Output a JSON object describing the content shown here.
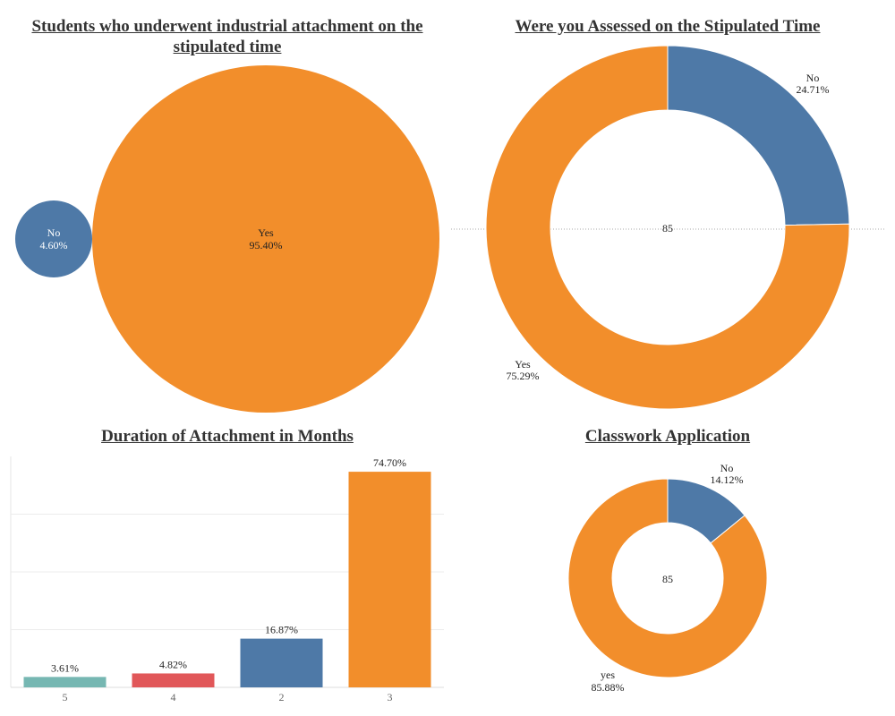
{
  "chart_data": [
    {
      "type": "pie",
      "variant": "packed-bubbles",
      "title_line1": "Students who underwent industrial attachment on the",
      "title_line2": "stipulated time",
      "slices": [
        {
          "label": "No",
          "value_label": "4.60%",
          "value": 4.6,
          "color": "#4e79a7"
        },
        {
          "label": "Yes",
          "value_label": "95.40%",
          "value": 95.4,
          "color": "#f28e2b"
        }
      ]
    },
    {
      "type": "pie",
      "variant": "donut",
      "title": "Were you Assessed on the Stipulated Time",
      "center_label": "85",
      "slices": [
        {
          "label": "No",
          "value_label": "24.71%",
          "value": 24.71,
          "color": "#4e79a7"
        },
        {
          "label": "Yes",
          "value_label": "75.29%",
          "value": 75.29,
          "color": "#f28e2b"
        }
      ]
    },
    {
      "type": "bar",
      "title": "Duration of Attachment in Months",
      "categories": [
        "5",
        "4",
        "2",
        "3"
      ],
      "values": [
        3.61,
        4.82,
        16.87,
        74.7
      ],
      "value_labels": [
        "3.61%",
        "4.82%",
        "16.87%",
        "74.70%"
      ],
      "colors": [
        "#76b7b2",
        "#e15759",
        "#4e79a7",
        "#f28e2b"
      ],
      "ylim": [
        0,
        80
      ],
      "grid": true
    },
    {
      "type": "pie",
      "variant": "donut",
      "title": "Classwork Application",
      "center_label": "85",
      "slices": [
        {
          "label": "No",
          "value_label": "14.12%",
          "value": 14.12,
          "color": "#4e79a7"
        },
        {
          "label": "yes",
          "value_label": "85.88%",
          "value": 85.88,
          "color": "#f28e2b"
        }
      ]
    }
  ]
}
